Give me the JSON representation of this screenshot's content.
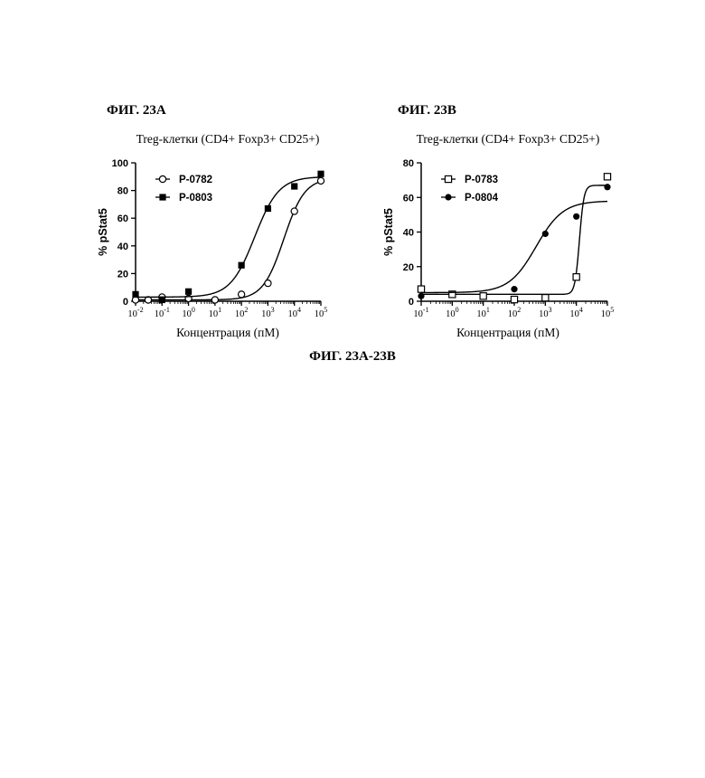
{
  "page": {
    "caption": "ФИГ. 23А-23В"
  },
  "chart_data": [
    {
      "type": "scatter",
      "panel_label": "ФИГ. 23А",
      "title": "Treg-клетки (CD4+ Foxp3+ CD25+)",
      "xlabel": "Концентрация (пМ)",
      "ylabel": "% pStat5",
      "xscale": "log",
      "xlim": [
        0.01,
        100000
      ],
      "ylim": [
        0,
        100
      ],
      "yticks": [
        0,
        20,
        40,
        60,
        80,
        100
      ],
      "xtick_exponents": [
        "-2",
        "-1",
        "0",
        "1",
        "2",
        "3",
        "4",
        "5"
      ],
      "legend_position": "top-left",
      "series": [
        {
          "name": "P-0782",
          "marker": "open-circle",
          "points": [
            {
              "x": 0.01,
              "y": 1
            },
            {
              "x": 0.03,
              "y": 1
            },
            {
              "x": 0.1,
              "y": 3
            },
            {
              "x": 1,
              "y": 2
            },
            {
              "x": 10,
              "y": 1
            },
            {
              "x": 100,
              "y": 5
            },
            {
              "x": 1000,
              "y": 13
            },
            {
              "x": 10000,
              "y": 65
            },
            {
              "x": 100000,
              "y": 87
            }
          ],
          "fit": {
            "bottom": 1,
            "top": 89,
            "log_ec50": 3.6,
            "hill": 1.1
          }
        },
        {
          "name": "P-0803",
          "marker": "filled-square",
          "points": [
            {
              "x": 0.01,
              "y": 5
            },
            {
              "x": 0.1,
              "y": 1
            },
            {
              "x": 1,
              "y": 7
            },
            {
              "x": 100,
              "y": 26
            },
            {
              "x": 1000,
              "y": 67
            },
            {
              "x": 10000,
              "y": 83
            },
            {
              "x": 100000,
              "y": 92
            }
          ],
          "fit": {
            "bottom": 3,
            "top": 90,
            "log_ec50": 2.5,
            "hill": 0.95
          }
        }
      ]
    },
    {
      "type": "scatter",
      "panel_label": "ФИГ. 23В",
      "title": "Treg-клетки (CD4+ Foxp3+ CD25+)",
      "xlabel": "Концентрация (пМ)",
      "ylabel": "% pStat5",
      "xscale": "log",
      "xlim": [
        0.1,
        100000
      ],
      "ylim": [
        0,
        80
      ],
      "yticks": [
        0,
        20,
        40,
        60,
        80
      ],
      "xtick_exponents": [
        "-1",
        "0",
        "1",
        "2",
        "3",
        "4",
        "5"
      ],
      "legend_position": "top-left",
      "series": [
        {
          "name": "P-0783",
          "marker": "open-square",
          "points": [
            {
              "x": 0.1,
              "y": 7
            },
            {
              "x": 1,
              "y": 4
            },
            {
              "x": 10,
              "y": 3
            },
            {
              "x": 100,
              "y": 1
            },
            {
              "x": 1000,
              "y": 2
            },
            {
              "x": 10000,
              "y": 14
            },
            {
              "x": 100000,
              "y": 72
            }
          ],
          "fit": {
            "bottom": 4,
            "top": 67,
            "log_ec50": 4.1,
            "hill": 6
          }
        },
        {
          "name": "P-0804",
          "marker": "filled-circle",
          "points": [
            {
              "x": 0.1,
              "y": 3
            },
            {
              "x": 100,
              "y": 7
            },
            {
              "x": 1000,
              "y": 39
            },
            {
              "x": 10000,
              "y": 49
            },
            {
              "x": 100000,
              "y": 66
            }
          ],
          "fit": {
            "bottom": 5,
            "top": 58,
            "log_ec50": 2.7,
            "hill": 1.0
          }
        }
      ]
    }
  ]
}
